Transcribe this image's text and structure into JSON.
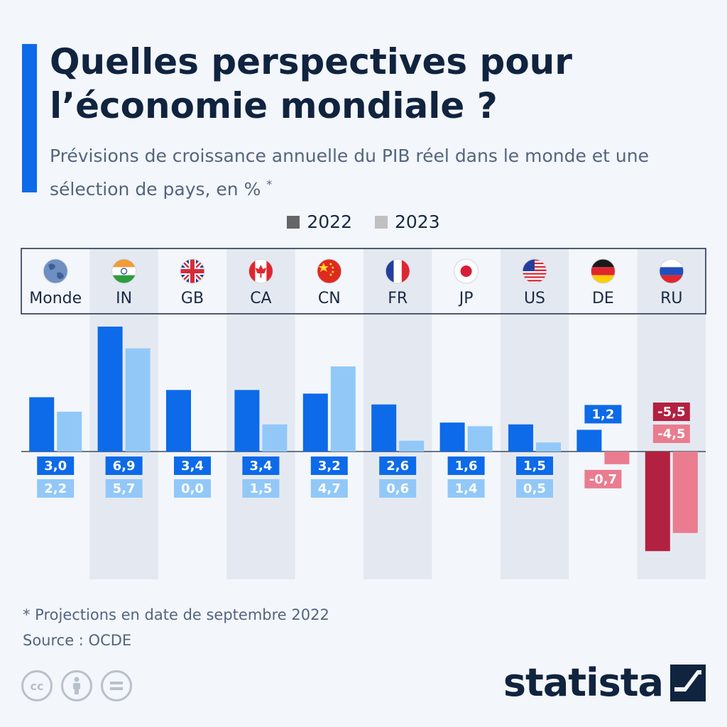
{
  "title": "Quelles perspectives pour l’économie mondiale ?",
  "subtitle": "Prévisions de croissance annuelle du PIB réel dans le monde et une sélection de pays, en %",
  "subtitle_mark": "*",
  "footnote": "* Projections en date de septembre 2022",
  "source": "Source : OCDE",
  "brand": "statista",
  "colors": {
    "accent": "#0d6ae8",
    "s2022_pos": "#0d6ae8",
    "s2023_pos": "#92c8f8",
    "s2022_neg": "#b2213f",
    "s2023_neg": "#ea7c8f",
    "legend_2022": "#666666",
    "legend_2023": "#c0c0c0"
  },
  "cc_icons": [
    "cc-icon",
    "attribution-icon",
    "no-derivatives-icon"
  ],
  "chart_data": {
    "type": "bar",
    "categories": [
      "Monde",
      "IN",
      "GB",
      "CA",
      "CN",
      "FR",
      "JP",
      "US",
      "DE",
      "RU"
    ],
    "flags": [
      "globe-icon",
      "flag-india-icon",
      "flag-uk-icon",
      "flag-canada-icon",
      "flag-china-icon",
      "flag-france-icon",
      "flag-japan-icon",
      "flag-usa-icon",
      "flag-germany-icon",
      "flag-russia-icon"
    ],
    "series": [
      {
        "name": "2022",
        "values": [
          3.0,
          6.9,
          3.4,
          3.4,
          3.2,
          2.6,
          1.6,
          1.5,
          1.2,
          -5.5
        ],
        "labels": [
          "3,0",
          "6,9",
          "3,4",
          "3,4",
          "3,2",
          "2,6",
          "1,6",
          "1,5",
          "1,2",
          "-5,5"
        ]
      },
      {
        "name": "2023",
        "values": [
          2.2,
          5.7,
          0.0,
          1.5,
          4.7,
          0.6,
          1.4,
          0.5,
          -0.7,
          -4.5
        ],
        "labels": [
          "2,2",
          "5,7",
          "0,0",
          "1,5",
          "4,7",
          "0,6",
          "1,4",
          "0,5",
          "-0,7",
          "-4,5"
        ]
      }
    ],
    "legend_position": "top-center",
    "grid": false
  }
}
